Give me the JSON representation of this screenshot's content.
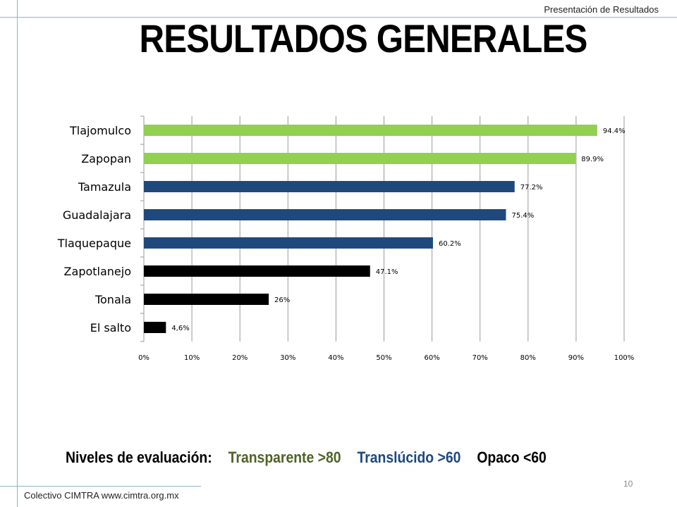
{
  "header": {
    "section_label": "Presentación de Resultados"
  },
  "title": "RESULTADOS GENERALES",
  "chart_data": {
    "type": "bar",
    "orientation": "horizontal",
    "categories": [
      "Tlajomulco",
      "Zapopan",
      "Tamazula",
      "Guadalajara",
      "Tlaquepaque",
      "Zapotlanejo",
      "Tonala",
      "El salto"
    ],
    "values": [
      94.4,
      89.9,
      77.2,
      75.4,
      60.2,
      47.1,
      26,
      4.6
    ],
    "data_labels": [
      "94.4%",
      "89.9%",
      "77.2%",
      "75.4%",
      "60.2%",
      "47.1%",
      "26%",
      "4,6%"
    ],
    "bar_colors": [
      "#92d050",
      "#92d050",
      "#1f497d",
      "#1f497d",
      "#1f497d",
      "#000000",
      "#000000",
      "#000000"
    ],
    "xlim": [
      0,
      100
    ],
    "x_ticks": [
      "0%",
      "10%",
      "20%",
      "30%",
      "40%",
      "50%",
      "60%",
      "70%",
      "80%",
      "90%",
      "100%"
    ],
    "grid": true,
    "xlabel": "",
    "ylabel": ""
  },
  "legend": {
    "heading": "Niveles de evaluación:",
    "items": [
      {
        "label": "Transparente >80",
        "color": "#4f6228"
      },
      {
        "label": "Translúcido >60",
        "color": "#1f497d"
      },
      {
        "label": "Opaco <60",
        "color": "#000000"
      }
    ]
  },
  "footer": {
    "text": "Colectivo CIMTRA www.cimtra.org.mx"
  },
  "page_number": "10"
}
